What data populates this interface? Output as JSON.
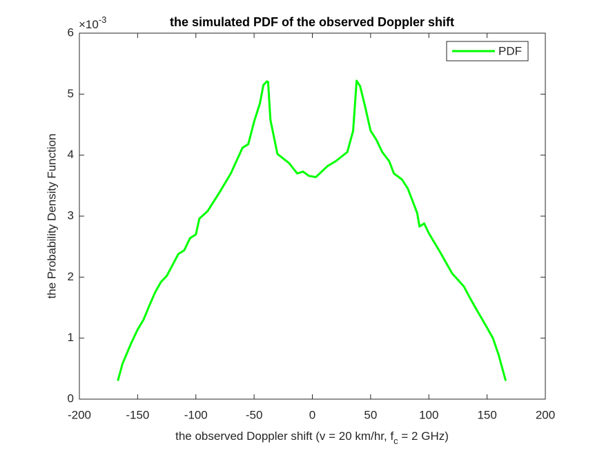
{
  "chart_data": {
    "type": "line",
    "title": "the simulated PDF of the observed Doppler shift",
    "xlabel": [
      "the observed Doppler shift (v = 20 km/hr, f",
      "c",
      " = 2 GHz)"
    ],
    "ylabel": "the Probability Density Function",
    "y_exponent": {
      "base": "×10",
      "power": "-3"
    },
    "x": [
      -167,
      -163,
      -155,
      -150,
      -145,
      -140,
      -135,
      -130,
      -125,
      -120,
      -115,
      -110,
      -105,
      -100,
      -97,
      -90,
      -80,
      -70,
      -60,
      -55,
      -50,
      -45,
      -42,
      -39,
      -38,
      -36,
      -30,
      -20,
      -13,
      -8,
      -3,
      3,
      8,
      13,
      20,
      30,
      35,
      38,
      41,
      45,
      50,
      55,
      60,
      66,
      70,
      77,
      82,
      90,
      92,
      96,
      100,
      110,
      120,
      130,
      135,
      140,
      150,
      155,
      160,
      166
    ],
    "series": [
      {
        "name": "PDF",
        "color": "#00ff00",
        "values": [
          0.3,
          0.58,
          0.94,
          1.14,
          1.3,
          1.53,
          1.75,
          1.92,
          2.02,
          2.2,
          2.38,
          2.44,
          2.64,
          2.7,
          2.96,
          3.08,
          3.38,
          3.7,
          4.12,
          4.18,
          4.55,
          4.85,
          5.15,
          5.21,
          5.2,
          4.58,
          4.02,
          3.87,
          3.7,
          3.73,
          3.66,
          3.64,
          3.73,
          3.82,
          3.9,
          4.05,
          4.4,
          5.22,
          5.13,
          4.82,
          4.4,
          4.25,
          4.05,
          3.9,
          3.7,
          3.6,
          3.45,
          3.05,
          2.83,
          2.88,
          2.72,
          2.4,
          2.06,
          1.85,
          1.67,
          1.5,
          1.17,
          1.0,
          0.72,
          0.3
        ]
      }
    ],
    "xlim": [
      -200,
      200
    ],
    "xticks": [
      -200,
      -150,
      -100,
      -50,
      0,
      50,
      100,
      150,
      200
    ],
    "ylim": [
      0,
      6
    ],
    "yticks": [
      0,
      1,
      2,
      3,
      4,
      5,
      6
    ],
    "legend": "upper right"
  }
}
